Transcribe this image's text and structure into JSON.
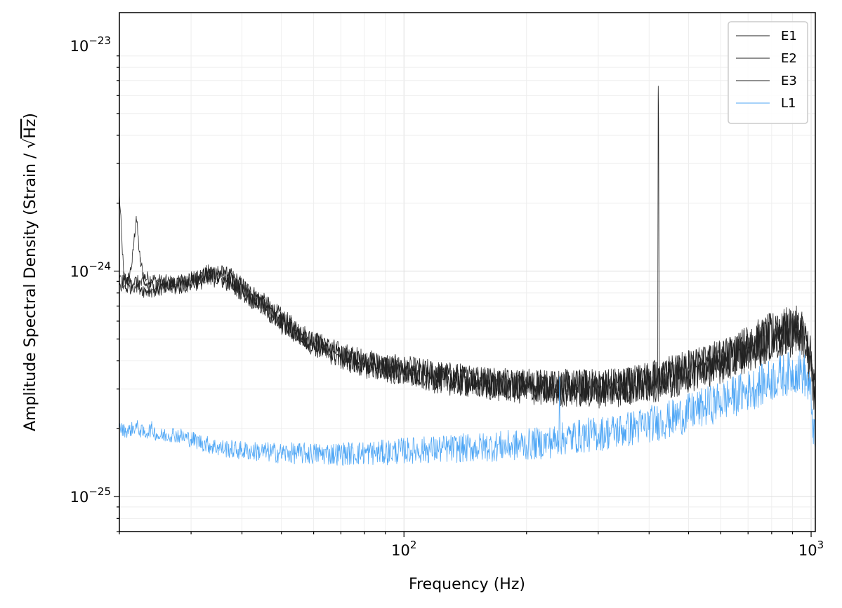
{
  "chart_data": {
    "type": "line",
    "title": "",
    "xlabel": "Frequency (Hz)",
    "ylabel_prefix": "Amplitude Spectral Density (Strain / ",
    "ylabel_radical": "√",
    "ylabel_unit": "Hz",
    "ylabel_suffix": ")",
    "xscale": "log",
    "yscale": "log",
    "xlim": [
      20,
      1024
    ],
    "ylim": [
      7e-26,
      1.4e-23
    ],
    "grid": true,
    "legend_position": "top-right",
    "x_ticks": [
      {
        "value": 100,
        "base": "10",
        "exp": "2"
      },
      {
        "value": 1000,
        "base": "10",
        "exp": "3"
      }
    ],
    "y_ticks": [
      {
        "value": 1e-25,
        "base": "10",
        "exp": "−25"
      },
      {
        "value": 1e-24,
        "base": "10",
        "exp": "−24"
      },
      {
        "value": 1e-23,
        "base": "10",
        "exp": "−23"
      }
    ],
    "series": [
      {
        "name": "E1",
        "color": "#222222",
        "x": [
          20,
          20.5,
          21,
          21.5,
          22,
          22.5,
          23,
          25,
          28,
          30,
          33,
          35,
          38,
          40,
          45,
          50,
          55,
          60,
          70,
          80,
          90,
          100,
          120,
          150,
          180,
          200,
          250,
          300,
          350,
          400,
          420,
          421,
          422,
          423,
          424,
          425,
          430,
          450,
          500,
          550,
          600,
          650,
          700,
          750,
          800,
          850,
          900,
          920,
          940,
          960,
          980,
          1000,
          1010,
          1024
        ],
        "y": [
          2.2e-24,
          9.5e-25,
          9e-25,
          1.1e-24,
          1.75e-24,
          1.1e-24,
          9.4e-25,
          9e-25,
          8.8e-25,
          9e-25,
          9.8e-25,
          9.9e-25,
          9.3e-25,
          8.6e-25,
          7.3e-25,
          6.2e-25,
          5.4e-25,
          4.9e-25,
          4.3e-25,
          4e-25,
          3.8e-25,
          3.7e-25,
          3.5e-25,
          3.3e-25,
          3.2e-25,
          3.15e-25,
          3.1e-25,
          3.1e-25,
          3.15e-25,
          3.3e-25,
          3.4e-25,
          6e-24,
          4.7e-24,
          1e-24,
          3.3e-25,
          3.35e-25,
          3.4e-25,
          3.5e-25,
          3.7e-25,
          3.9e-25,
          4.1e-25,
          4.4e-25,
          4.7e-25,
          5e-25,
          5.3e-25,
          5.5e-25,
          5.6e-25,
          5.6e-25,
          5.5e-25,
          5e-25,
          4.3e-25,
          3.6e-25,
          3.2e-25,
          2.8e-25
        ]
      },
      {
        "name": "E2",
        "color": "#222222",
        "x": [
          20,
          21,
          22,
          23,
          25,
          28,
          30,
          33,
          35,
          38,
          40,
          45,
          50,
          60,
          70,
          80,
          100,
          120,
          150,
          200,
          250,
          300,
          350,
          400,
          420,
          425,
          450,
          500,
          600,
          700,
          800,
          900,
          940,
          980,
          1000,
          1024
        ],
        "y": [
          9.2e-25,
          8.9e-25,
          9e-25,
          8.7e-25,
          8.6e-25,
          8.8e-25,
          9.3e-25,
          9.5e-25,
          9.6e-25,
          8.9e-25,
          8.4e-25,
          7.1e-25,
          6e-25,
          4.8e-25,
          4.2e-25,
          3.9e-25,
          3.6e-25,
          3.4e-25,
          3.25e-25,
          3.1e-25,
          3.05e-25,
          3.05e-25,
          3.1e-25,
          3.25e-25,
          3.3e-25,
          3.3e-25,
          3.4e-25,
          3.6e-25,
          4e-25,
          4.6e-25,
          5.1e-25,
          5.4e-25,
          5.4e-25,
          4.8e-25,
          4e-25,
          2.6e-25
        ]
      },
      {
        "name": "E3",
        "color": "#222222",
        "x": [
          20,
          21,
          22,
          23,
          25,
          28,
          30,
          33,
          35,
          38,
          40,
          45,
          50,
          60,
          70,
          80,
          100,
          120,
          150,
          200,
          250,
          300,
          350,
          400,
          420,
          425,
          450,
          500,
          600,
          700,
          800,
          900,
          940,
          980,
          1000,
          1024
        ],
        "y": [
          8.6e-25,
          8.4e-25,
          8.7e-25,
          8.2e-25,
          8.3e-25,
          8.5e-25,
          8.8e-25,
          9.2e-25,
          9.3e-25,
          8.7e-25,
          8.1e-25,
          6.9e-25,
          5.8e-25,
          4.7e-25,
          4.1e-25,
          3.8e-25,
          3.5e-25,
          3.3e-25,
          3.15e-25,
          3e-25,
          2.95e-25,
          2.95e-25,
          3e-25,
          3.15e-25,
          3.2e-25,
          3.2e-25,
          3.3e-25,
          3.5e-25,
          3.9e-25,
          4.4e-25,
          4.9e-25,
          5.2e-25,
          5.2e-25,
          4.6e-25,
          3.8e-25,
          2.4e-25
        ]
      },
      {
        "name": "L1",
        "color": "#4ea6f5",
        "x": [
          20,
          21,
          22,
          23,
          24,
          25,
          27,
          30,
          33,
          35,
          40,
          45,
          50,
          60,
          70,
          80,
          90,
          100,
          120,
          150,
          200,
          230,
          240,
          241,
          242,
          245,
          250,
          300,
          350,
          400,
          450,
          500,
          550,
          600,
          650,
          700,
          750,
          800,
          850,
          900,
          920,
          940,
          960,
          980,
          1000,
          1010,
          1024
        ],
        "y": [
          2e-25,
          1.95e-25,
          2.05e-25,
          1.9e-25,
          2e-25,
          1.85e-25,
          1.9e-25,
          1.8e-25,
          1.7e-25,
          1.65e-25,
          1.6e-25,
          1.58e-25,
          1.56e-25,
          1.55e-25,
          1.55e-25,
          1.56e-25,
          1.57e-25,
          1.6e-25,
          1.62e-25,
          1.65e-25,
          1.7e-25,
          1.75e-25,
          1.78e-25,
          3.4e-25,
          1.8e-25,
          1.8e-25,
          1.82e-25,
          1.9e-25,
          1.98e-25,
          2.1e-25,
          2.2e-25,
          2.35e-25,
          2.5e-25,
          2.65e-25,
          2.8e-25,
          2.95e-25,
          3.1e-25,
          3.3e-25,
          3.45e-25,
          3.55e-25,
          3.6e-25,
          3.6e-25,
          3.5e-25,
          3.2e-25,
          2.7e-25,
          2.2e-25,
          1.5e-25
        ]
      }
    ]
  }
}
